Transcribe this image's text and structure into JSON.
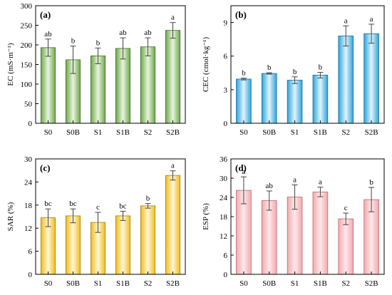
{
  "chart_data": [
    {
      "type": "bar",
      "panel_label": "(a)",
      "categories": [
        "S0",
        "S0B",
        "S1",
        "S1B",
        "S2",
        "S2B"
      ],
      "values": [
        193,
        162,
        172,
        191,
        195,
        237
      ],
      "errors": [
        22,
        35,
        20,
        27,
        23,
        20
      ],
      "significance": [
        "ab",
        "b",
        "b",
        "ab",
        "ab",
        "a"
      ],
      "ylabel": "EC (mS·m⁻¹)",
      "ylim": [
        0,
        300
      ],
      "yticks": [
        0,
        50,
        100,
        150,
        200,
        250,
        300
      ],
      "colors": {
        "light": "#e8f4dd",
        "dark": "#6fa84a",
        "stroke": "#3f6e26"
      }
    },
    {
      "type": "bar",
      "panel_label": "(b)",
      "categories": [
        "S0",
        "S0B",
        "S1",
        "S1B",
        "S2",
        "S2B"
      ],
      "values": [
        3.95,
        4.45,
        3.85,
        4.3,
        7.8,
        8.0
      ],
      "errors": [
        0.08,
        0.06,
        0.3,
        0.25,
        0.9,
        0.85
      ],
      "significance": [
        "b",
        "b",
        "b",
        "b",
        "a",
        "a"
      ],
      "ylabel": "CEC (cmol·kg⁻¹)",
      "ylim": [
        0,
        10.5
      ],
      "yticks": [
        0,
        3,
        6,
        9
      ],
      "colors": {
        "light": "#dff4fb",
        "dark": "#2ea4dc",
        "stroke": "#1a6f99"
      }
    },
    {
      "type": "bar",
      "panel_label": "(c)",
      "categories": [
        "S0",
        "S0B",
        "S1",
        "S1B",
        "S2",
        "S2B"
      ],
      "values": [
        14.7,
        15.2,
        13.5,
        15.2,
        17.8,
        25.7
      ],
      "errors": [
        2.3,
        1.8,
        2.6,
        1.2,
        0.6,
        1.2
      ],
      "significance": [
        "bc",
        "bc",
        "c",
        "bc",
        "b",
        "a"
      ],
      "ylabel": "SAR (%)",
      "ylim": [
        0,
        30
      ],
      "yticks": [
        0,
        6,
        12,
        18,
        24,
        30
      ],
      "colors": {
        "light": "#fff6d6",
        "dark": "#f0bc1a",
        "stroke": "#a8800a"
      }
    },
    {
      "type": "bar",
      "panel_label": "(d)",
      "categories": [
        "S0",
        "S0B",
        "S1",
        "S1B",
        "S2",
        "S2B"
      ],
      "values": [
        26.2,
        23.0,
        24.1,
        25.7,
        17.3,
        23.3
      ],
      "errors": [
        4.2,
        3.0,
        3.8,
        1.5,
        1.8,
        3.8
      ],
      "significance": [
        "a",
        "ab",
        "a",
        "a",
        "c",
        "b"
      ],
      "ylabel": "ESP (%)",
      "ylim": [
        0,
        36
      ],
      "yticks": [
        0,
        6,
        12,
        18,
        24,
        30,
        36
      ],
      "colors": {
        "light": "#fde8ea",
        "dark": "#f2a9ad",
        "stroke": "#b86a70"
      }
    }
  ]
}
